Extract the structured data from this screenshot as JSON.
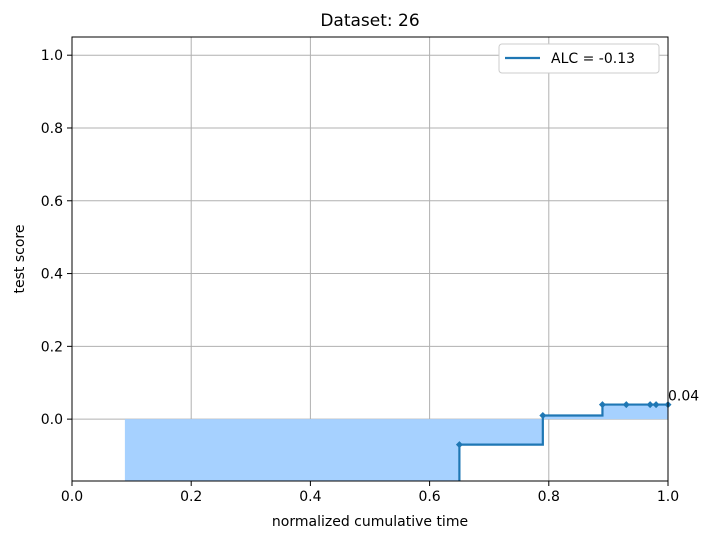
{
  "chart_data": {
    "type": "line",
    "title": "Dataset: 26",
    "xlabel": "normalized cumulative time",
    "ylabel": "test score",
    "xlim": [
      0.0,
      1.0
    ],
    "ylim": [
      -0.17,
      1.05
    ],
    "grid": true,
    "x_ticks": [
      "0.0",
      "0.2",
      "0.4",
      "0.6",
      "0.8",
      "1.0"
    ],
    "y_ticks": [
      "0.0",
      "0.2",
      "0.4",
      "0.6",
      "0.8",
      "1.0"
    ],
    "legend": {
      "placement": "top-right",
      "label": "ALC = -0.13"
    },
    "series": [
      {
        "name": "ALC = -0.13",
        "step": "post",
        "x": [
          0.65,
          0.79,
          0.89,
          0.93,
          0.97,
          0.98,
          1.0
        ],
        "y": [
          -0.07,
          0.01,
          0.04,
          0.04,
          0.04,
          0.04,
          0.04
        ]
      }
    ],
    "fill": {
      "x_start": 0.09,
      "x_end": 1.0,
      "baseline": 0.0
    },
    "annotations": [
      {
        "text": "0.04",
        "x": 1.0,
        "y": 0.04
      }
    ],
    "colors": {
      "line": "#1f77b4",
      "fill": "#a6d1ff",
      "grid": "#b0b0b0"
    }
  }
}
